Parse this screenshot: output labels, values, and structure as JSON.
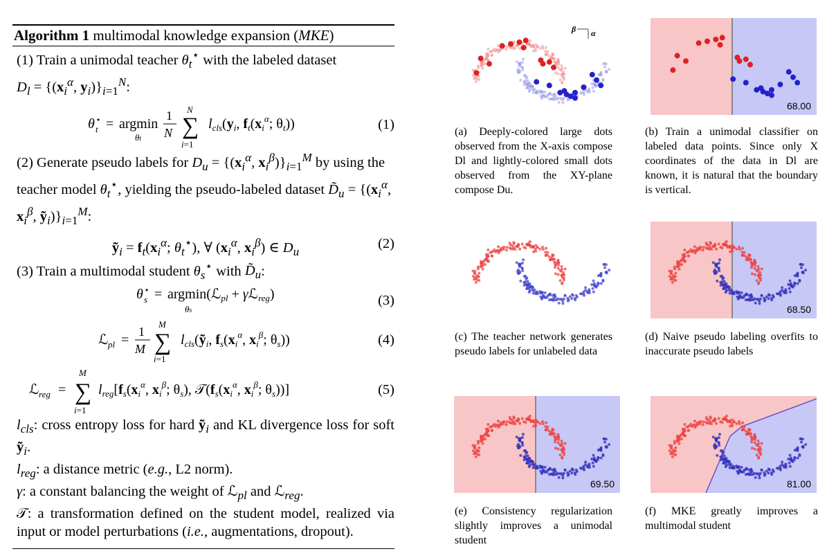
{
  "algorithm": {
    "label": "Algorithm 1",
    "title": "multimodal knowledge expansion (MKE)",
    "step1": "(1) Train a unimodal teacher θ*t with the labeled dataset",
    "step1_set": "Dl = {(xαi, yi)} N i=1:",
    "eq1": "θ*t = argmin θt (1/N) Σ i=1..N lcls(yi, ft(xαi; θt))",
    "eq1_num": "(1)",
    "step2": "(2) Generate pseudo labels for Du = {(xαi, xβi)} M i=1 by using the teacher model θ*t, yielding the pseudo-labeled dataset D̃u = {(xαi, xβi, ỹi)} M i=1:",
    "eq2": "ỹi = ft(xαi; θ*t), ∀ (xαi, xβi) ∈ Du",
    "eq2_num": "(2)",
    "step3": "(3) Train a multimodal student θ*s with D̃u:",
    "eq3": "θ*s = argmin θs (ℒpl + γℒreg)",
    "eq3_num": "(3)",
    "eq4": "ℒpl = (1/M) Σ i=1..M lcls(ỹi, fs(xαi, xβi; θs))",
    "eq4_num": "(4)",
    "eq5": "ℒreg = Σ i=1..M lreg[fs(xαi, xβi; θs), 𝒯(fs(xαi, xβi; θs))]",
    "eq5_num": "(5)",
    "def1": "lcls: cross entropy loss for hard ỹi and KL divergence loss for soft ỹi.",
    "def2": "lreg: a distance metric (e.g., L2 norm).",
    "def3": "γ: a constant balancing the weight of ℒpl and ℒreg.",
    "def4": "𝒯: a transformation defined on the student model, realized via input or model perturbations (i.e., augmentations, dropout)."
  },
  "figure": {
    "axis_beta": "β",
    "axis_alpha": "α",
    "panels": [
      {
        "id": "a",
        "accuracy": "",
        "caption": "(a) Deeply-colored large dots observed from the X-axis compose Dl and lightly-colored small dots observed from the XY-plane compose Du."
      },
      {
        "id": "b",
        "accuracy": "68.00",
        "caption": "(b) Train a unimodal classifier on labeled data points. Since only X coordinates of the data in Dl are known, it is natural that the boundary is vertical."
      },
      {
        "id": "c",
        "accuracy": "",
        "caption": "(c) The teacher network generates pseudo labels for unlabeled data"
      },
      {
        "id": "d",
        "accuracy": "68.50",
        "caption": "(d) Naive pseudo labeling overfits to inaccurate pseudo labels"
      },
      {
        "id": "e",
        "accuracy": "69.50",
        "caption": "(e) Consistency regularization slightly improves a unimodal student"
      },
      {
        "id": "f",
        "accuracy": "81.00",
        "caption": "(f) MKE greatly improves a multimodal student"
      }
    ],
    "colors": {
      "red_region": "#f8c6c6",
      "blue_region": "#c8c8f6",
      "red_dot": "#dd2222",
      "blue_dot": "#2222cc",
      "boundary": "#888888"
    }
  }
}
